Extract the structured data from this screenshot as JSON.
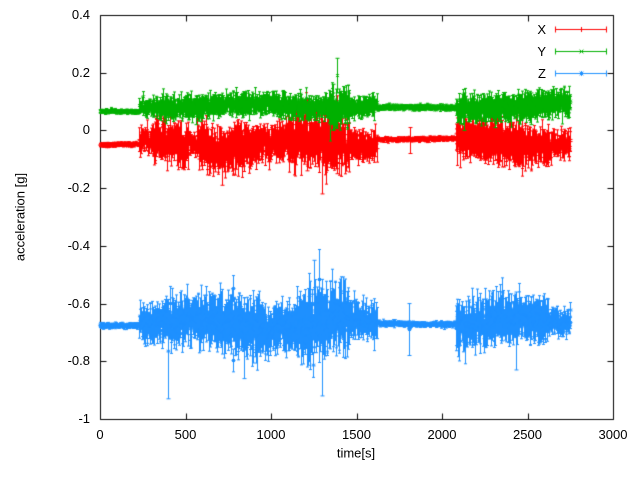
{
  "chart_data": {
    "type": "scatter",
    "style": "errorbars",
    "title": "",
    "xlabel": "time[s]",
    "ylabel": "acceleration [g]",
    "xlim": [
      0,
      3000
    ],
    "ylim": [
      -1,
      0.4
    ],
    "x_ticks": [
      0,
      500,
      1000,
      1500,
      2000,
      2500,
      3000
    ],
    "x_tick_labels": [
      "0",
      "500",
      "1000",
      "1500",
      "2000",
      "2500",
      "3000"
    ],
    "y_ticks": [
      -1,
      -0.8,
      -0.6,
      -0.4,
      -0.2,
      0,
      0.2,
      0.4
    ],
    "y_tick_labels": [
      "-1",
      "-0.8",
      "-0.6",
      "-0.4",
      "-0.2",
      "0",
      "0.2",
      "0.4"
    ],
    "grid": false,
    "legend_position": "top-right",
    "background_color": "#ffffff",
    "axis_color": "#000000",
    "sample_interval_s": 2.5,
    "t_max": 2750,
    "seed": 1337,
    "series": [
      {
        "name": "X",
        "color": "#ff0000",
        "marker": "+",
        "baseline_segments": [
          [
            0,
            230,
            -0.05
          ],
          [
            230,
            1620,
            -0.045
          ],
          [
            1620,
            2080,
            -0.03
          ],
          [
            2080,
            2750,
            -0.04
          ]
        ],
        "amplitude_segments": [
          [
            0,
            230,
            0.006
          ],
          [
            230,
            310,
            0.03
          ],
          [
            310,
            520,
            0.05
          ],
          [
            520,
            570,
            0.025
          ],
          [
            570,
            900,
            0.055
          ],
          [
            900,
            1100,
            0.045
          ],
          [
            1100,
            1460,
            0.062
          ],
          [
            1460,
            1620,
            0.035
          ],
          [
            1620,
            2080,
            0.006
          ],
          [
            2080,
            2280,
            0.05
          ],
          [
            2280,
            2480,
            0.055
          ],
          [
            2480,
            2640,
            0.045
          ],
          [
            2640,
            2750,
            0.03
          ]
        ],
        "spikes": [
          {
            "t": 712,
            "lo": -0.19,
            "hi": -0.02
          },
          {
            "t": 1212,
            "lo": -0.14,
            "hi": 0.11
          },
          {
            "t": 1296,
            "lo": -0.22,
            "hi": 0.03
          },
          {
            "t": 1388,
            "lo": -0.15,
            "hi": 0.12
          },
          {
            "t": 1810,
            "lo": -0.08,
            "hi": 0.01
          }
        ]
      },
      {
        "name": "Y",
        "color": "#00b000",
        "marker": "x",
        "baseline_segments": [
          [
            0,
            230,
            0.065
          ],
          [
            230,
            1620,
            0.085
          ],
          [
            1620,
            2080,
            0.078
          ],
          [
            2080,
            2750,
            0.085
          ]
        ],
        "amplitude_segments": [
          [
            0,
            230,
            0.006
          ],
          [
            230,
            310,
            0.02
          ],
          [
            310,
            1340,
            0.028
          ],
          [
            1340,
            1460,
            0.045
          ],
          [
            1460,
            1620,
            0.025
          ],
          [
            1620,
            2080,
            0.007
          ],
          [
            2080,
            2750,
            0.033
          ]
        ],
        "spikes": [
          {
            "t": 560,
            "lo": 0.02,
            "hi": 0.12
          },
          {
            "t": 1362,
            "lo": 0.0,
            "hi": 0.16
          },
          {
            "t": 1388,
            "lo": 0.13,
            "hi": 0.25
          },
          {
            "t": 2128,
            "lo": 0.0,
            "hi": 0.13
          },
          {
            "t": 2312,
            "lo": 0.01,
            "hi": 0.12
          },
          {
            "t": 2520,
            "lo": 0.02,
            "hi": 0.13
          }
        ]
      },
      {
        "name": "Z",
        "color": "#1e90ff",
        "marker": "*",
        "baseline_segments": [
          [
            0,
            230,
            -0.675
          ],
          [
            230,
            1620,
            -0.67
          ],
          [
            1620,
            2080,
            -0.67
          ],
          [
            2080,
            2750,
            -0.665
          ]
        ],
        "amplitude_segments": [
          [
            0,
            230,
            0.007
          ],
          [
            230,
            420,
            0.045
          ],
          [
            420,
            700,
            0.06
          ],
          [
            700,
            950,
            0.07
          ],
          [
            950,
            1150,
            0.055
          ],
          [
            1150,
            1460,
            0.082
          ],
          [
            1460,
            1620,
            0.045
          ],
          [
            1620,
            2080,
            0.007
          ],
          [
            2080,
            2360,
            0.06
          ],
          [
            2360,
            2620,
            0.055
          ],
          [
            2620,
            2750,
            0.03
          ]
        ],
        "spikes": [
          {
            "t": 400,
            "lo": -0.93,
            "hi": -0.6
          },
          {
            "t": 840,
            "lo": -0.86,
            "hi": -0.58
          },
          {
            "t": 1252,
            "lo": -0.75,
            "hi": -0.45
          },
          {
            "t": 1300,
            "lo": -0.92,
            "hi": -0.55
          },
          {
            "t": 1806,
            "lo": -0.78,
            "hi": -0.6
          },
          {
            "t": 2432,
            "lo": -0.83,
            "hi": -0.56
          }
        ]
      }
    ]
  }
}
